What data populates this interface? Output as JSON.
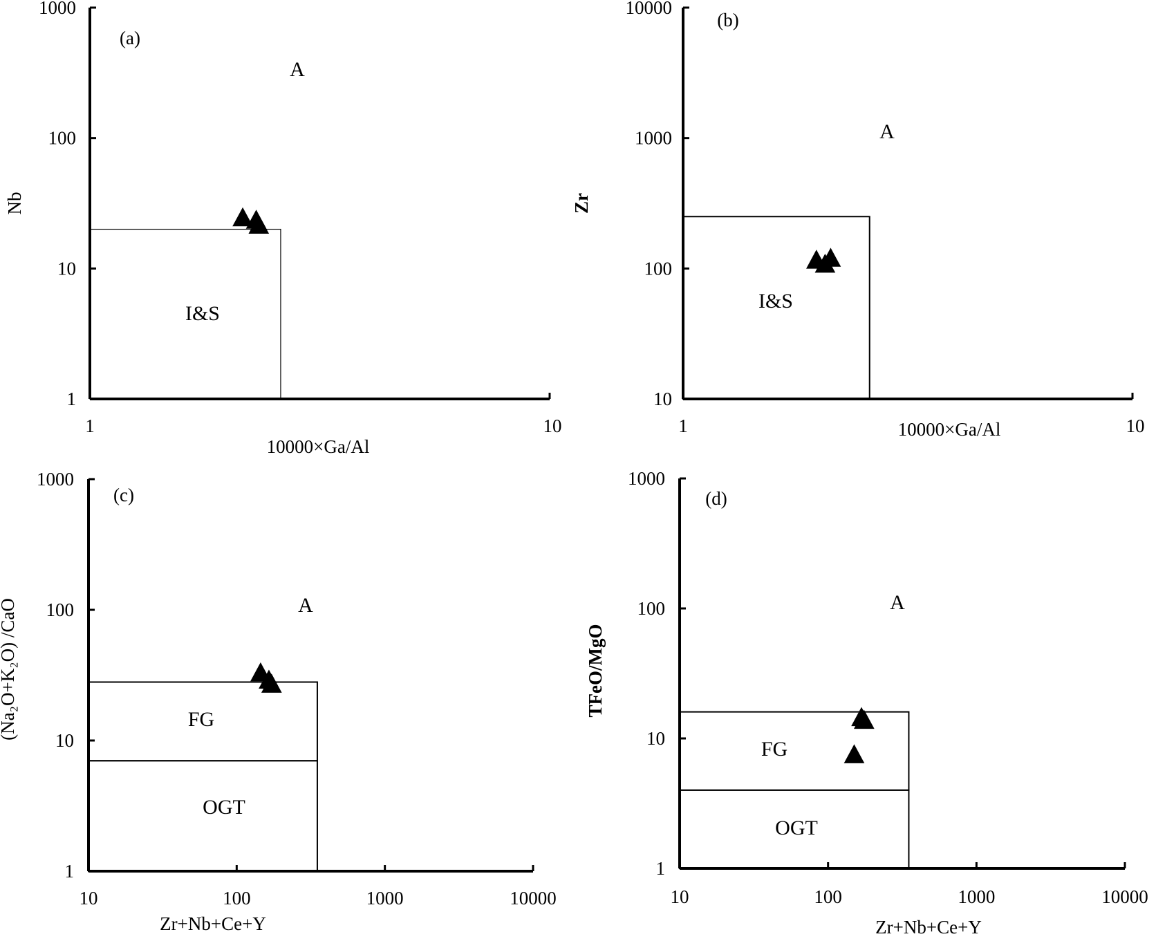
{
  "chart_data": [
    {
      "type": "scatter",
      "panel_label": "(a)",
      "xlabel": "10000×Ga/Al",
      "ylabel": "Nb",
      "xscale": "log",
      "yscale": "log",
      "xlim": [
        1,
        10
      ],
      "ylim": [
        1,
        1000
      ],
      "x_ticks": [
        "1",
        "10"
      ],
      "y_ticks": [
        "1",
        "10",
        "100",
        "1000"
      ],
      "regions": [
        {
          "label": "A"
        },
        {
          "label": "I&S",
          "x_max": 2.6,
          "y_max": 20
        }
      ],
      "marker": "filled-triangle",
      "points": [
        {
          "x": 2.15,
          "y": 24.5
        },
        {
          "x": 2.3,
          "y": 23.5
        },
        {
          "x": 2.33,
          "y": 21.5
        }
      ]
    },
    {
      "type": "scatter",
      "panel_label": "(b)",
      "xlabel": "10000×Ga/Al",
      "ylabel": "Zr",
      "xscale": "log",
      "yscale": "log",
      "xlim": [
        1,
        10
      ],
      "ylim": [
        10,
        10000
      ],
      "x_ticks": [
        "1",
        "10"
      ],
      "y_ticks": [
        "10",
        "100",
        "1000",
        "10000"
      ],
      "regions": [
        {
          "label": "A"
        },
        {
          "label": "I&S",
          "x_max": 2.6,
          "y_max": 250
        }
      ],
      "marker": "filled-triangle",
      "points": [
        {
          "x": 1.98,
          "y": 116
        },
        {
          "x": 2.07,
          "y": 108
        },
        {
          "x": 2.13,
          "y": 120
        }
      ]
    },
    {
      "type": "scatter",
      "panel_label": "(c)",
      "xlabel": "Zr+Nb+Ce+Y",
      "ylabel": "(Na₂O+K₂O) /CaO",
      "xscale": "log",
      "yscale": "log",
      "xlim": [
        10,
        10000
      ],
      "ylim": [
        1,
        1000
      ],
      "x_ticks": [
        "10",
        "100",
        "1000",
        "10000"
      ],
      "y_ticks": [
        "1",
        "10",
        "100",
        "1000"
      ],
      "regions": [
        {
          "label": "A"
        },
        {
          "label": "FG",
          "x_max": 350,
          "y_min": 7,
          "y_max": 28
        },
        {
          "label": "OGT",
          "x_max": 350,
          "y_max": 7
        }
      ],
      "marker": "filled-triangle",
      "points": [
        {
          "x": 145,
          "y": 33
        },
        {
          "x": 165,
          "y": 29
        },
        {
          "x": 172,
          "y": 27
        }
      ]
    },
    {
      "type": "scatter",
      "panel_label": "(d)",
      "xlabel": "Zr+Nb+Ce+Y",
      "ylabel": "TFeO/MgO",
      "xscale": "log",
      "yscale": "log",
      "xlim": [
        10,
        10000
      ],
      "ylim": [
        1,
        1000
      ],
      "x_ticks": [
        "10",
        "100",
        "1000",
        "10000"
      ],
      "y_ticks": [
        "1",
        "10",
        "100",
        "1000"
      ],
      "regions": [
        {
          "label": "A"
        },
        {
          "label": "FG",
          "x_max": 350,
          "y_min": 4,
          "y_max": 16
        },
        {
          "label": "OGT",
          "x_max": 350,
          "y_max": 4
        }
      ],
      "marker": "filled-triangle",
      "points": [
        {
          "x": 168,
          "y": 14.5
        },
        {
          "x": 175,
          "y": 13.8
        },
        {
          "x": 150,
          "y": 7.5
        }
      ]
    }
  ]
}
